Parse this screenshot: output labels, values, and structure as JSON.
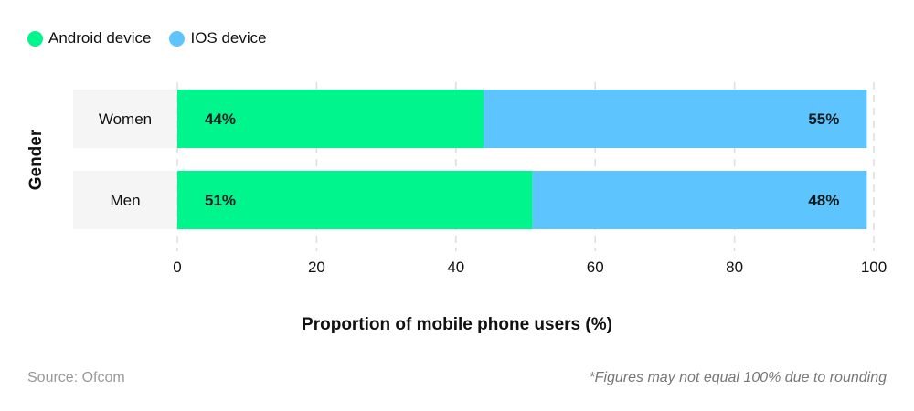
{
  "chart_data": {
    "type": "bar",
    "orientation": "horizontal",
    "stacked": true,
    "categories": [
      "Women",
      "Men"
    ],
    "series": [
      {
        "name": "Android device",
        "values": [
          44,
          51
        ],
        "color": "#00f58c",
        "labels": [
          "44%",
          "51%"
        ]
      },
      {
        "name": "IOS device",
        "values": [
          55,
          48
        ],
        "color": "#5ec4fd",
        "labels": [
          "55%",
          "48%"
        ]
      }
    ],
    "xlabel": "Proportion of mobile phone users (%)",
    "ylabel": "Gender",
    "xlim": [
      0,
      100
    ],
    "xticks": [
      0,
      20,
      40,
      60,
      80,
      100
    ],
    "grid": true,
    "legend": "top-left"
  },
  "source": "Source: Ofcom",
  "note": "*Figures may not equal 100% due to rounding"
}
